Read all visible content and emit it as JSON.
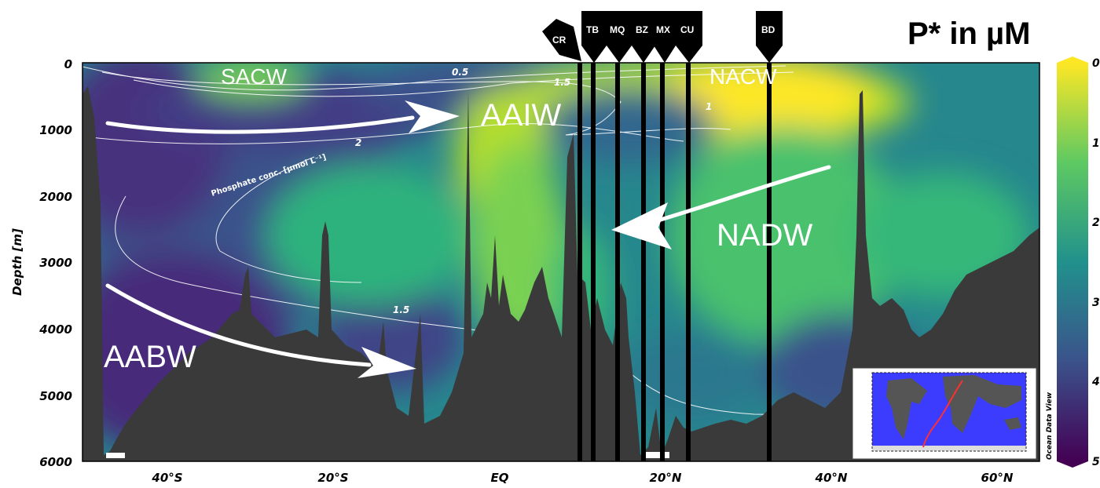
{
  "title": "P* in µM",
  "chart_data": {
    "type": "heatmap",
    "title": "P* in µM",
    "xlabel": "",
    "ylabel": "Depth [m]",
    "x_ticks": [
      "40°S",
      "20°S",
      "EQ",
      "20°N",
      "40°N",
      "60°N"
    ],
    "y_ticks": [
      "0",
      "1000",
      "2000",
      "3000",
      "4000",
      "5000",
      "6000"
    ],
    "ylim": [
      6000,
      0
    ],
    "colorbar": {
      "ticks": [
        "0",
        "1",
        "2",
        "3",
        "4",
        "5"
      ],
      "range": [
        0,
        5
      ],
      "colormap": "viridis_reversed",
      "colors": [
        "#fde725",
        "#5ec962",
        "#21918c",
        "#3b528b",
        "#440154"
      ]
    },
    "water_masses": [
      "SACW",
      "AAIW",
      "NACW",
      "NADW",
      "AABW"
    ],
    "contour_labels": [
      "0.5",
      "1.5",
      "1",
      "2",
      "1.5"
    ],
    "contour_title": "Phosphate conc. [µmol L⁻¹]",
    "stations": [
      "CR",
      "TB",
      "MQ",
      "BZ",
      "MX",
      "CU",
      "BD"
    ],
    "watermark": "Ocean Data View",
    "colors": {
      "seafloor": "#3a3a3a",
      "arrow": "#ffffff",
      "station_line": "#000000"
    }
  }
}
